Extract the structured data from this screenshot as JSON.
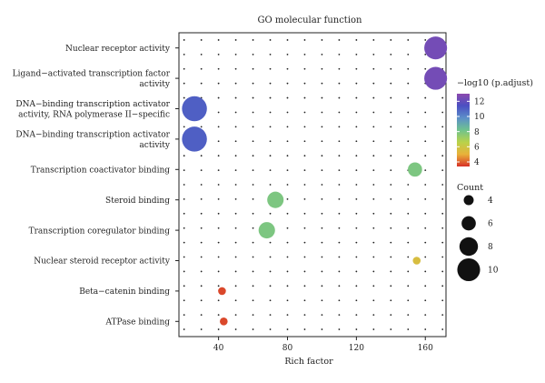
{
  "chart_data": {
    "type": "scatter",
    "title": "GO molecular function",
    "xlabel": "Rich factor",
    "ylabel": "",
    "xlim": [
      17,
      172
    ],
    "xticks": [
      40,
      80,
      120,
      160
    ],
    "xtick_labels": [
      "40",
      "80",
      "120",
      "160"
    ],
    "categories": [
      [
        "Nuclear receptor activity"
      ],
      [
        "Ligand−activated transcription factor",
        "activity"
      ],
      [
        "DNA−binding transcription activator",
        "activity, RNA polymerase II−specific"
      ],
      [
        "DNA−binding transcription activator",
        "activity"
      ],
      [
        "Transcription coactivator binding"
      ],
      [
        "Steroid binding"
      ],
      [
        "Transcription coregulator binding"
      ],
      [
        "Nuclear steroid receptor activity"
      ],
      [
        "Beta−catenin binding"
      ],
      [
        "ATPase binding"
      ]
    ],
    "points": [
      {
        "x": 166,
        "count": 10,
        "neglog10_padj": 12.4
      },
      {
        "x": 166,
        "count": 10,
        "neglog10_padj": 12.4
      },
      {
        "x": 26,
        "count": 11,
        "neglog10_padj": 11.0
      },
      {
        "x": 26,
        "count": 11,
        "neglog10_padj": 11.0
      },
      {
        "x": 154,
        "count": 6,
        "neglog10_padj": 7.9
      },
      {
        "x": 73,
        "count": 7,
        "neglog10_padj": 7.9
      },
      {
        "x": 68,
        "count": 7,
        "neglog10_padj": 7.9
      },
      {
        "x": 155,
        "count": 3,
        "neglog10_padj": 5.6
      },
      {
        "x": 42,
        "count": 3,
        "neglog10_padj": 3.7
      },
      {
        "x": 43,
        "count": 3,
        "neglog10_padj": 3.7
      }
    ],
    "color_legend": {
      "title": "−log10 (p.adjust)",
      "range": [
        3.4,
        13.0
      ],
      "ticks": [
        4,
        6,
        8,
        10,
        12
      ],
      "tick_labels": [
        "4",
        "6",
        "8",
        "10",
        "12"
      ],
      "stops": [
        "#d73027",
        "#e9b13a",
        "#b9d24a",
        "#6fc38e",
        "#5c8fc9",
        "#4b4fc2",
        "#8c4aae"
      ]
    },
    "size_legend": {
      "title": "Count",
      "values": [
        4,
        6,
        8,
        10
      ],
      "labels": [
        "4",
        "6",
        "8",
        "10"
      ]
    },
    "grid": "dotted"
  }
}
